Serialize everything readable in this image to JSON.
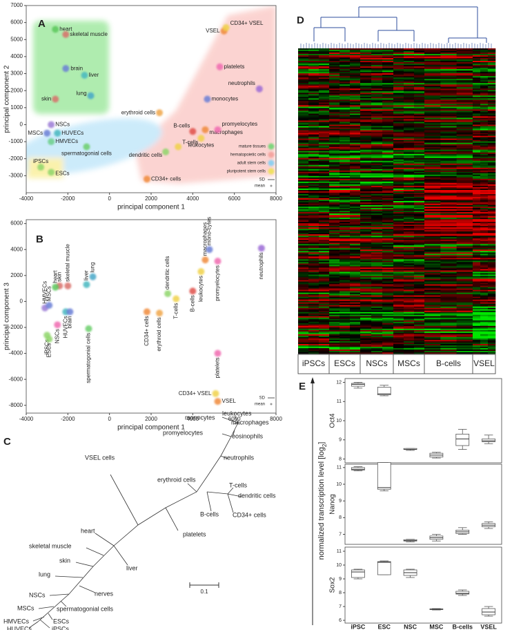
{
  "chart_data": [
    {
      "type": "scatter",
      "label": "A",
      "xlabel": "principal component 1",
      "ylabel": "principal component 2",
      "xlim": [
        -4000,
        8000
      ],
      "xticks": [
        -4000,
        -2000,
        0,
        2000,
        4000,
        6000,
        8000
      ],
      "ylim": [
        -4000,
        7000
      ],
      "yticks": [
        -3000,
        -2000,
        -1000,
        0,
        1000,
        2000,
        3000,
        4000,
        5000,
        6000,
        7000
      ],
      "labels": [
        "heart",
        "skeletal muscle",
        "brain",
        "liver",
        "lung",
        "skin",
        "NSCs",
        "MSCs",
        "HUVECs",
        "HMVECs",
        "spermatogonial cells",
        "iPSCs",
        "ESCs",
        "erythroid cells",
        "B-cells",
        "dendritic cells",
        "T-cells",
        "leukocytes",
        "macrophages",
        "promyelocytes",
        "monocytes",
        "neutrophils",
        "platelets",
        "VSEL",
        "CD34+ VSEL",
        "CD34+ cells"
      ],
      "x": [
        -2600,
        -2100,
        -2100,
        -1200,
        -900,
        -2600,
        -2800,
        -3000,
        -2500,
        -2800,
        -1100,
        -3300,
        -2800,
        2400,
        4000,
        2700,
        3300,
        4400,
        4600,
        5200,
        4700,
        7200,
        5300,
        5500,
        5600,
        1800
      ],
      "values": [
        5600,
        5300,
        3300,
        2900,
        1700,
        1500,
        0,
        -500,
        -500,
        -1000,
        -1300,
        -2500,
        -2800,
        700,
        -400,
        -1600,
        -1300,
        -800,
        -300,
        -300,
        1500,
        2100,
        3400,
        5500,
        5700,
        -3200
      ],
      "colors": [
        "#5cc85c",
        "#d9706a",
        "#6a7fd6",
        "#47b8c0",
        "#47a7c8",
        "#d9706a",
        "#9b7bd6",
        "#6a7fd6",
        "#47b8c0",
        "#6ccf8a",
        "#6ccf6c",
        "#8fd66a",
        "#8fd66a",
        "#f0a64a",
        "#e0504a",
        "#8fd66a",
        "#f0d24a",
        "#f0d24a",
        "#f08a3a",
        "#f06ab0",
        "#6a7fd6",
        "#9b6ad6",
        "#f06ab0",
        "#f08a3a",
        "#f0d24a",
        "#f08a3a"
      ],
      "legend": [
        {
          "name": "mature tissues",
          "color": "#7ed67e"
        },
        {
          "name": "hematopoietic cells",
          "color": "#f4a5a0"
        },
        {
          "name": "adult stem cells",
          "color": "#8fd0f0"
        },
        {
          "name": "pluripotent stem cells",
          "color": "#f0e060"
        }
      ],
      "markers": [
        "SD",
        "mean"
      ]
    },
    {
      "type": "scatter",
      "label": "B",
      "xlabel": "principal component 1",
      "ylabel": "principal component 3",
      "xlim": [
        -4000,
        8000
      ],
      "xticks": [
        -4000,
        -2000,
        0,
        2000,
        4000,
        6000,
        8000
      ],
      "ylim": [
        -8600,
        6300
      ],
      "yticks": [
        -8000,
        -6000,
        -4000,
        -2000,
        0,
        2000,
        4000,
        6000
      ],
      "labels": [
        "iPSCs",
        "ESCs",
        "HMVECs",
        "MSCs",
        "skin",
        "heart",
        "skeletal muscle",
        "NSCs",
        "HUVECs",
        "brain",
        "liver",
        "lung",
        "spermatogonial cells",
        "CD34+ cells",
        "erythroid cells",
        "dendritic cells",
        "T-cells",
        "B-cells",
        "macrophages",
        "leukocytes",
        "mono-cytes",
        "promyelocytes",
        "platelets",
        "neutrophils",
        "CD34+ VSEL",
        "VSEL"
      ],
      "x": [
        -3000,
        -2900,
        -3100,
        -2900,
        -2400,
        -2600,
        -2000,
        -2500,
        -2100,
        -1900,
        -1100,
        -800,
        -1000,
        1800,
        2400,
        2800,
        3200,
        4000,
        4600,
        4400,
        4800,
        5200,
        5200,
        7300,
        5100,
        5200
      ],
      "values": [
        -2600,
        -2900,
        -500,
        -300,
        1200,
        1100,
        1200,
        -1800,
        -800,
        -800,
        1300,
        1900,
        -2100,
        -800,
        -900,
        600,
        200,
        800,
        3200,
        2300,
        4000,
        3100,
        -4000,
        4100,
        -7100,
        -7700
      ],
      "colors": [
        "#8fd66a",
        "#8fd66a",
        "#9b7bd6",
        "#6a7fd6",
        "#d9706a",
        "#5cc85c",
        "#d9706a",
        "#f06ab0",
        "#47b8c0",
        "#6a7fd6",
        "#47b8c0",
        "#47a7c8",
        "#6ccf6c",
        "#f08a3a",
        "#f0a64a",
        "#8fd66a",
        "#f0d24a",
        "#e0504a",
        "#f08a3a",
        "#f0d24a",
        "#6a7fd6",
        "#f06ab0",
        "#f06ab0",
        "#9b6ad6",
        "#f0d24a",
        "#f08a3a"
      ],
      "markers": [
        "SD",
        "mean"
      ]
    },
    {
      "type": "box",
      "label": "E",
      "title": "Oct4",
      "ylabel": "normalized transcription level [log",
      "ylabel_subscript": "2",
      "ylabel_end": "]",
      "ylim": [
        7.8,
        12.2
      ],
      "yticks": [
        8,
        9,
        10,
        11,
        12
      ],
      "min": [
        11.7,
        11.3,
        8.45,
        8.05,
        8.5,
        8.8
      ],
      "q1": [
        11.8,
        11.35,
        8.5,
        8.1,
        8.7,
        8.9
      ],
      "median": [
        11.9,
        11.4,
        8.5,
        8.2,
        9.05,
        8.95
      ],
      "q3": [
        11.95,
        11.75,
        8.55,
        8.3,
        9.3,
        9.05
      ],
      "max": [
        12.0,
        11.85,
        8.55,
        8.35,
        9.55,
        9.25
      ]
    },
    {
      "type": "box",
      "title": "Nanog",
      "ylim": [
        6.4,
        11.2
      ],
      "yticks": [
        7,
        8,
        9,
        10,
        11
      ],
      "min": [
        10.8,
        9.6,
        6.55,
        6.6,
        7.0,
        7.35
      ],
      "q1": [
        10.85,
        9.7,
        6.6,
        6.7,
        7.05,
        7.45
      ],
      "median": [
        10.9,
        9.8,
        6.62,
        6.8,
        7.15,
        7.55
      ],
      "q3": [
        11.0,
        11.3,
        6.68,
        6.9,
        7.25,
        7.65
      ],
      "max": [
        11.05,
        11.3,
        6.7,
        7.0,
        7.4,
        7.75
      ]
    },
    {
      "type": "box",
      "title": "Sox2",
      "ylim": [
        5.8,
        11.3
      ],
      "yticks": [
        6,
        7,
        8,
        9,
        10,
        11
      ],
      "categories": [
        "iPSC",
        "ESC",
        "NSC",
        "MSC",
        "B-cells",
        "VSEL"
      ],
      "min": [
        9.0,
        9.3,
        9.1,
        6.75,
        7.8,
        6.3
      ],
      "q1": [
        9.1,
        9.3,
        9.25,
        6.78,
        7.9,
        6.4
      ],
      "median": [
        9.5,
        10.2,
        9.45,
        6.8,
        7.95,
        6.6
      ],
      "q3": [
        9.65,
        10.25,
        9.65,
        6.83,
        8.1,
        6.85
      ],
      "max": [
        9.7,
        10.3,
        9.7,
        6.85,
        8.2,
        7.0
      ]
    }
  ],
  "tree": {
    "label": "C",
    "scale": "0.1",
    "leaves": [
      "monocytes",
      "leukocytes",
      "macrophages",
      "promyelocytes",
      "eosinophils",
      "neutrophils",
      "VSEL cells",
      "erythroid cells",
      "T-cells",
      "dendritic cells",
      "B-cells",
      "CD34+ cells",
      "platelets",
      "heart",
      "skeletal muscle",
      "skin",
      "liver",
      "lung",
      "NSCs",
      "nerves",
      "spermatogonial cells",
      "MSCs",
      "ESCs",
      "HMVECs",
      "HUVECs",
      "iPSCs"
    ]
  },
  "heatmap": {
    "label": "D",
    "groups": [
      "iPSCs",
      "ESCs",
      "NSCs",
      "MSCs",
      "B-cells",
      "VSEL"
    ]
  }
}
